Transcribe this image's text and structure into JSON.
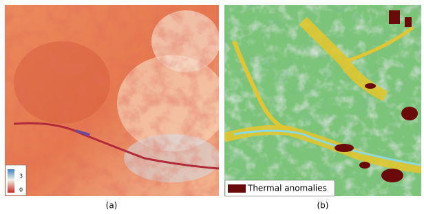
{
  "panels": [
    {
      "caption": "(a)",
      "colorbar": {
        "max_label": "3",
        "min_label": "0"
      }
    },
    {
      "caption": "(b)",
      "legend": {
        "label": "Thermal anomalies"
      }
    }
  ]
}
